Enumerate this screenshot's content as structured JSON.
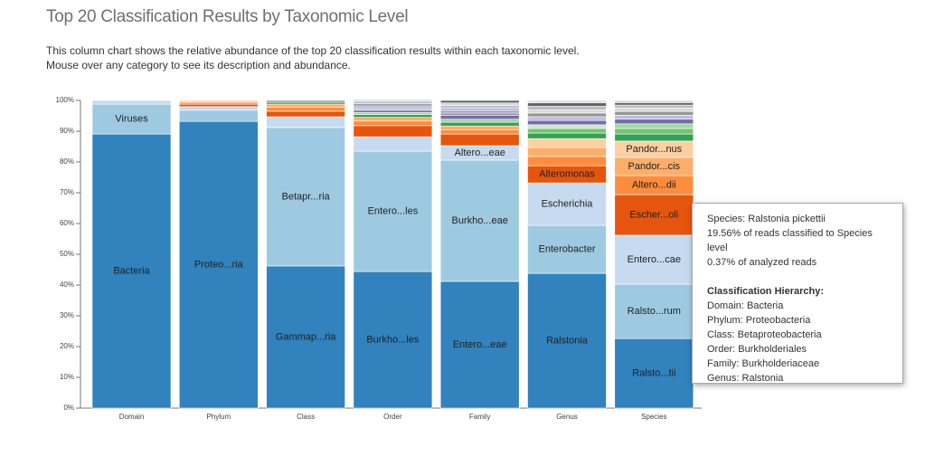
{
  "header": {
    "title": "Top 20 Classification Results by Taxonomic Level",
    "description": [
      "This column chart shows the relative abundance of the top 20 classification results within each taxonomic level.",
      "Mouse over any category to see its description and abundance."
    ]
  },
  "chart_data": {
    "type": "stacked-bar",
    "ylim": [
      0,
      100
    ],
    "yticks": [
      {
        "value": 0,
        "label": "0%"
      },
      {
        "value": 10,
        "label": "10%"
      },
      {
        "value": 20,
        "label": "20%"
      },
      {
        "value": 30,
        "label": "30%"
      },
      {
        "value": 40,
        "label": "40%"
      },
      {
        "value": 50,
        "label": "50%"
      },
      {
        "value": 60,
        "label": "60%"
      },
      {
        "value": 70,
        "label": "70%"
      },
      {
        "value": 80,
        "label": "80%"
      },
      {
        "value": 90,
        "label": "90%"
      },
      {
        "value": 100,
        "label": "100%"
      }
    ],
    "columns": [
      {
        "category": "Domain",
        "segments": [
          {
            "label": "Bacteria",
            "value": 89.1,
            "color": "#3182bd"
          },
          {
            "label": "Viruses",
            "value": 9.7,
            "color": "#9ecae1"
          },
          {
            "value": 1.2,
            "color": "#c6dbef"
          }
        ]
      },
      {
        "category": "Phylum",
        "segments": [
          {
            "label": "Proteo...ria",
            "value": 93.2,
            "color": "#3182bd"
          },
          {
            "value": 3.6,
            "color": "#9ecae1"
          },
          {
            "value": 1.2,
            "color": "#c6dbef"
          },
          {
            "value": 0.8,
            "color": "#e6550d"
          },
          {
            "value": 0.6,
            "color": "#fd8d3c"
          },
          {
            "value": 0.6,
            "color": "#fdd0a2"
          }
        ]
      },
      {
        "category": "Class",
        "segments": [
          {
            "label": "Gammap...ria",
            "value": 46.2,
            "color": "#3182bd"
          },
          {
            "label": "Betapr...ria",
            "value": 45.0,
            "color": "#9ecae1"
          },
          {
            "value": 3.5,
            "color": "#c6dbef"
          },
          {
            "value": 1.8,
            "color": "#e6550d"
          },
          {
            "value": 1.3,
            "color": "#fd8d3c"
          },
          {
            "value": 1.0,
            "color": "#fdae6b"
          },
          {
            "value": 0.6,
            "color": "#31a354"
          },
          {
            "value": 0.6,
            "color": "#969696"
          }
        ]
      },
      {
        "category": "Order",
        "segments": [
          {
            "label": "Burkho...les",
            "value": 44.4,
            "color": "#3182bd"
          },
          {
            "label": "Entero...les",
            "value": 39.1,
            "color": "#9ecae1"
          },
          {
            "value": 4.7,
            "color": "#c6dbef"
          },
          {
            "value": 3.6,
            "color": "#e6550d"
          },
          {
            "value": 1.5,
            "color": "#fd8d3c"
          },
          {
            "value": 1.2,
            "color": "#fdae6b"
          },
          {
            "value": 0.9,
            "color": "#31a354"
          },
          {
            "value": 0.7,
            "color": "#a1d99b"
          },
          {
            "value": 0.7,
            "color": "#756bb1"
          },
          {
            "value": 0.6,
            "color": "#bcbddc"
          },
          {
            "value": 0.5,
            "color": "#969696"
          },
          {
            "value": 0.3,
            "color": "#636363"
          },
          {
            "value": 0.8,
            "color": "#9e9ac8"
          },
          {
            "value": 0.7,
            "color": "#bdbdbd"
          },
          {
            "value": 0.6,
            "color": "#d9d9d9"
          }
        ]
      },
      {
        "category": "Family",
        "segments": [
          {
            "label": "Entero...eae",
            "value": 41.2,
            "color": "#3182bd"
          },
          {
            "label": "Burkho...eae",
            "value": 39.4,
            "color": "#9ecae1"
          },
          {
            "label": "Altero...eae",
            "value": 4.7,
            "color": "#c6dbef"
          },
          {
            "value": 3.8,
            "color": "#e6550d"
          },
          {
            "value": 1.4,
            "color": "#fd8d3c"
          },
          {
            "value": 1.2,
            "color": "#fdae6b"
          },
          {
            "value": 1.2,
            "color": "#31a354"
          },
          {
            "value": 1.0,
            "color": "#a1d99b"
          },
          {
            "value": 1.2,
            "color": "#756bb1"
          },
          {
            "value": 0.8,
            "color": "#969696"
          },
          {
            "value": 0.8,
            "color": "#9e9ac8"
          },
          {
            "value": 0.9,
            "color": "#bcbddc"
          },
          {
            "value": 0.8,
            "color": "#bdbdbd"
          },
          {
            "value": 0.8,
            "color": "#d9d9d9"
          },
          {
            "value": 0.8,
            "color": "#636363"
          }
        ]
      },
      {
        "category": "Genus",
        "segments": [
          {
            "label": "Ralstonia",
            "value": 43.8,
            "color": "#3182bd"
          },
          {
            "label": "Enterobacter",
            "value": 15.6,
            "color": "#9ecae1"
          },
          {
            "label": "Escherichia",
            "value": 13.8,
            "color": "#c6dbef"
          },
          {
            "label": "Alteromonas",
            "value": 5.6,
            "color": "#e6550d"
          },
          {
            "value": 3.0,
            "color": "#fd8d3c"
          },
          {
            "value": 2.9,
            "color": "#fdae6b"
          },
          {
            "value": 2.9,
            "color": "#fdd0a2"
          },
          {
            "value": 1.8,
            "color": "#31a354"
          },
          {
            "value": 1.5,
            "color": "#74c476"
          },
          {
            "value": 1.2,
            "color": "#c7e9c0"
          },
          {
            "value": 1.4,
            "color": "#756bb1"
          },
          {
            "value": 1.2,
            "color": "#bcbddc"
          },
          {
            "value": 1.2,
            "color": "#969696"
          },
          {
            "value": 1.0,
            "color": "#d9d9d9"
          },
          {
            "value": 1.2,
            "color": "#bdbdbd"
          },
          {
            "value": 1.1,
            "color": "#636363"
          },
          {
            "value": 0.8,
            "color": "#dadaeb"
          }
        ]
      },
      {
        "category": "Species",
        "segments": [
          {
            "label": "Ralsto...tii",
            "value": 22.6,
            "color": "#3182bd"
          },
          {
            "label": "Ralsto...rum",
            "value": 17.7,
            "color": "#9ecae1"
          },
          {
            "label": "Entero...cae",
            "value": 15.9,
            "color": "#c6dbef"
          },
          {
            "label": "Escher...oli",
            "value": 13.2,
            "color": "#e6550d"
          },
          {
            "label": "Altero...dii",
            "value": 6.2,
            "color": "#fd8d3c"
          },
          {
            "label": "Pandor...cis",
            "value": 5.9,
            "color": "#fdae6b"
          },
          {
            "label": "Pandor...nus",
            "value": 5.3,
            "color": "#fdd0a2"
          },
          {
            "value": 2.3,
            "color": "#31a354"
          },
          {
            "value": 1.8,
            "color": "#74c476"
          },
          {
            "value": 1.5,
            "color": "#a1d99b"
          },
          {
            "value": 1.5,
            "color": "#756bb1"
          },
          {
            "value": 1.3,
            "color": "#bcbddc"
          },
          {
            "value": 1.2,
            "color": "#969696"
          },
          {
            "value": 1.1,
            "color": "#d9d9d9"
          },
          {
            "value": 1.0,
            "color": "#bdbdbd"
          },
          {
            "value": 0.8,
            "color": "#636363"
          },
          {
            "value": 0.7,
            "color": "#dadaeb"
          }
        ]
      }
    ]
  },
  "tooltip": {
    "lines": [
      "Species: Ralstonia pickettii",
      "19.56% of reads classified to Species level",
      "0.37% of analyzed reads"
    ],
    "hierarchy_title": "Classification Hierarchy:",
    "hierarchy": [
      "Domain: Bacteria",
      "Phylum: Proteobacteria",
      "Class: Betaproteobacteria",
      "Order: Burkholderiales",
      "Family: Burkholderiaceae",
      "Genus: Ralstonia"
    ]
  }
}
